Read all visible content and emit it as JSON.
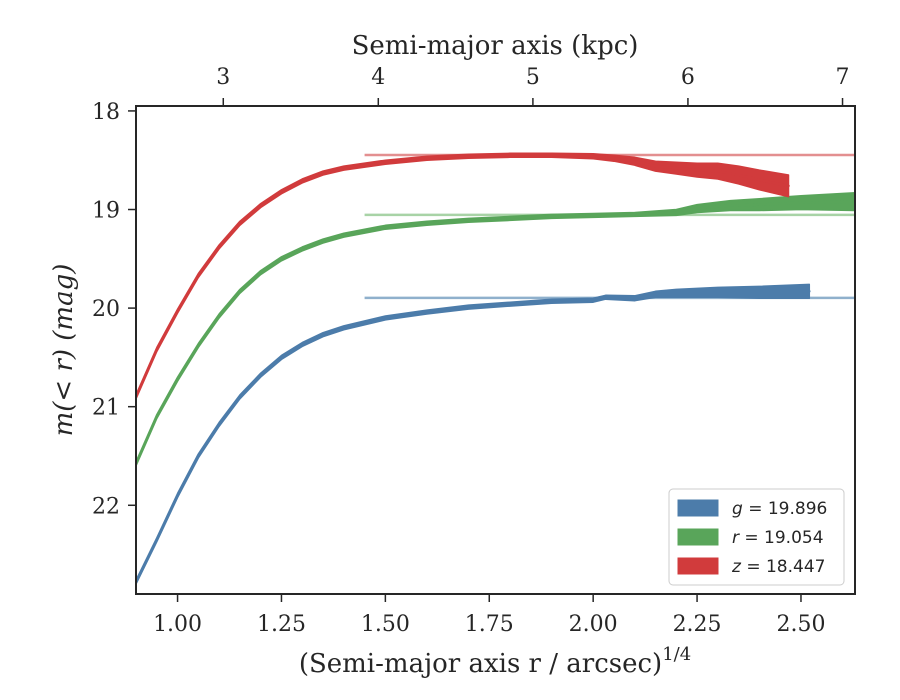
{
  "chart_data": {
    "type": "line",
    "title": "",
    "xlabel": "(Semi-major axis r / arcsec)",
    "xlabel_sup": "1/4",
    "ylabel": "m(< r) (mag)",
    "top_xlabel": "Semi-major axis (kpc)",
    "xlim": [
      0.9,
      2.63
    ],
    "ylim": [
      22.9,
      17.95
    ],
    "y_inverted": true,
    "x_ticks": [
      "1.00",
      "1.25",
      "1.50",
      "1.75",
      "2.00",
      "2.25",
      "2.50"
    ],
    "x_tick_values": [
      1.0,
      1.25,
      1.5,
      1.75,
      2.0,
      2.25,
      2.5
    ],
    "y_ticks": [
      "18",
      "19",
      "20",
      "21",
      "22"
    ],
    "y_tick_values": [
      18,
      19,
      20,
      21,
      22
    ],
    "top_x_ticks": [
      "3",
      "4",
      "5",
      "6",
      "7"
    ],
    "top_x_tick_positions": [
      1.11,
      1.483,
      1.855,
      2.228,
      2.6
    ],
    "grid": false,
    "legend_position": "lower-right",
    "series": [
      {
        "name": "g = 19.896",
        "band": "g",
        "total": "19.896",
        "color": "#4c7caa",
        "model_color": "#8fb0cc",
        "model_value": 19.896,
        "x": [
          0.9,
          0.95,
          1.0,
          1.05,
          1.1,
          1.15,
          1.2,
          1.25,
          1.3,
          1.35,
          1.4,
          1.5,
          1.6,
          1.7,
          1.8,
          1.9,
          2.0,
          2.03,
          2.1,
          2.15,
          2.2,
          2.3,
          2.4,
          2.52
        ],
        "values": [
          22.78,
          22.35,
          21.9,
          21.5,
          21.18,
          20.9,
          20.68,
          20.5,
          20.37,
          20.27,
          20.2,
          20.1,
          20.04,
          19.99,
          19.96,
          19.93,
          19.92,
          19.89,
          19.9,
          19.86,
          19.85,
          19.84,
          19.84,
          19.83
        ],
        "band_width": [
          0.02,
          0.02,
          0.02,
          0.02,
          0.02,
          0.02,
          0.02,
          0.02,
          0.02,
          0.02,
          0.02,
          0.02,
          0.02,
          0.02,
          0.02,
          0.02,
          0.02,
          0.02,
          0.025,
          0.03,
          0.04,
          0.05,
          0.06,
          0.07
        ]
      },
      {
        "name": "r = 19.054",
        "band": "r",
        "total": "19.054",
        "color": "#59a55a",
        "model_color": "#a8d3a6",
        "model_value": 19.054,
        "x": [
          0.9,
          0.95,
          1.0,
          1.05,
          1.1,
          1.15,
          1.2,
          1.25,
          1.3,
          1.35,
          1.4,
          1.5,
          1.6,
          1.7,
          1.8,
          1.9,
          2.0,
          2.1,
          2.2,
          2.25,
          2.33,
          2.4,
          2.5,
          2.63
        ],
        "values": [
          21.58,
          21.1,
          20.72,
          20.38,
          20.08,
          19.83,
          19.64,
          19.5,
          19.4,
          19.32,
          19.26,
          19.18,
          19.14,
          19.11,
          19.09,
          19.07,
          19.06,
          19.05,
          19.03,
          18.99,
          18.96,
          18.95,
          18.93,
          18.92
        ],
        "band_width": [
          0.02,
          0.02,
          0.02,
          0.02,
          0.02,
          0.02,
          0.02,
          0.02,
          0.02,
          0.02,
          0.02,
          0.02,
          0.02,
          0.02,
          0.02,
          0.02,
          0.02,
          0.02,
          0.03,
          0.04,
          0.05,
          0.06,
          0.07,
          0.09
        ]
      },
      {
        "name": "z = 18.447",
        "band": "z",
        "total": "18.447",
        "color": "#d13b3c",
        "model_color": "#e38f90",
        "model_value": 18.447,
        "x": [
          0.9,
          0.95,
          1.0,
          1.05,
          1.1,
          1.15,
          1.2,
          1.25,
          1.3,
          1.35,
          1.4,
          1.5,
          1.6,
          1.7,
          1.8,
          1.9,
          2.0,
          2.05,
          2.1,
          2.15,
          2.2,
          2.25,
          2.3,
          2.35,
          2.4,
          2.47
        ],
        "values": [
          20.9,
          20.42,
          20.03,
          19.67,
          19.38,
          19.14,
          18.96,
          18.82,
          18.71,
          18.63,
          18.58,
          18.52,
          18.48,
          18.46,
          18.45,
          18.45,
          18.46,
          18.48,
          18.51,
          18.56,
          18.58,
          18.6,
          18.61,
          18.65,
          18.7,
          18.76
        ],
        "band_width": [
          0.02,
          0.02,
          0.02,
          0.02,
          0.02,
          0.02,
          0.02,
          0.02,
          0.02,
          0.02,
          0.02,
          0.02,
          0.02,
          0.02,
          0.02,
          0.02,
          0.025,
          0.03,
          0.04,
          0.05,
          0.06,
          0.07,
          0.08,
          0.09,
          0.1,
          0.11
        ]
      }
    ]
  }
}
